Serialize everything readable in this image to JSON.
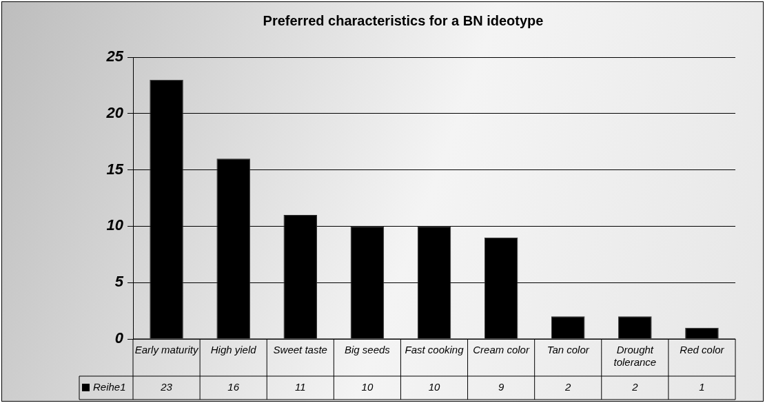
{
  "chart_data": {
    "type": "bar",
    "title": "Preferred characteristics for a BN ideotype",
    "categories": [
      "Early maturity",
      "High yield",
      "Sweet taste",
      "Big seeds",
      "Fast cooking",
      "Cream color",
      "Tan color",
      "Drought tolerance",
      "Red color"
    ],
    "series": [
      {
        "name": "Reihe1",
        "color": "#000000",
        "values": [
          23,
          16,
          11,
          10,
          10,
          9,
          2,
          2,
          1
        ]
      }
    ],
    "ylim": [
      0,
      25
    ],
    "yticks": [
      0,
      5,
      10,
      15,
      20,
      25
    ],
    "grid": "y",
    "legend": "bottom",
    "data_labels": true
  }
}
